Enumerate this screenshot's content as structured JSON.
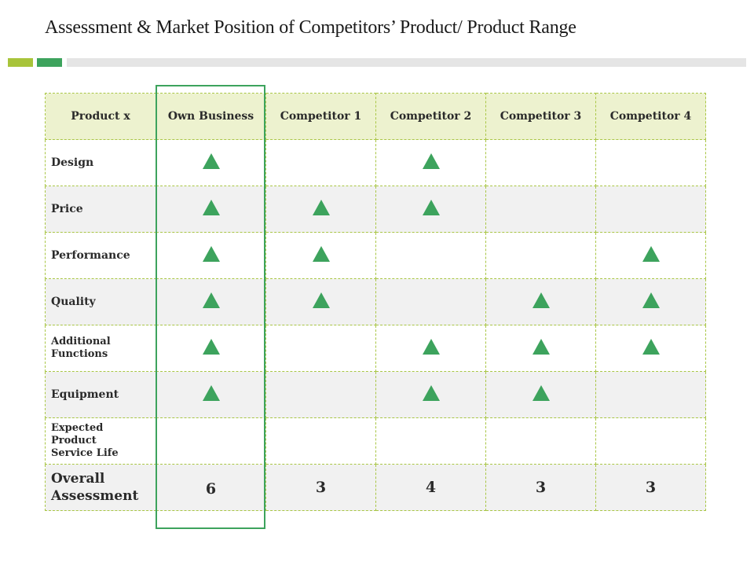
{
  "title": "Assessment & Market Position of Competitors’ Product/ Product Range",
  "colors": {
    "accent_lime": "#a8c43a",
    "accent_green": "#3da35d",
    "header_bg": "#edf2cf"
  },
  "table": {
    "headers": [
      "Product x",
      "Own Business",
      "Competitor 1",
      "Competitor 2",
      "Competitor 3",
      "Competitor 4"
    ],
    "rows": [
      {
        "label": "Design",
        "marks": [
          true,
          false,
          true,
          false,
          false
        ]
      },
      {
        "label": "Price",
        "marks": [
          true,
          true,
          true,
          false,
          false
        ]
      },
      {
        "label": "Performance",
        "marks": [
          true,
          true,
          false,
          false,
          true
        ]
      },
      {
        "label": "Quality",
        "marks": [
          true,
          true,
          false,
          true,
          true
        ]
      },
      {
        "label": "Additional Functions",
        "marks": [
          true,
          false,
          true,
          true,
          true
        ]
      },
      {
        "label": "Equipment",
        "marks": [
          true,
          false,
          true,
          true,
          false
        ]
      },
      {
        "label": "Expected Product Service Life",
        "marks": [
          false,
          false,
          false,
          false,
          false
        ]
      }
    ],
    "total": {
      "label": "Overall Assessment",
      "values": [
        "6",
        "3",
        "4",
        "3",
        "3"
      ]
    },
    "mark_icon": "green-up-triangle-icon"
  }
}
